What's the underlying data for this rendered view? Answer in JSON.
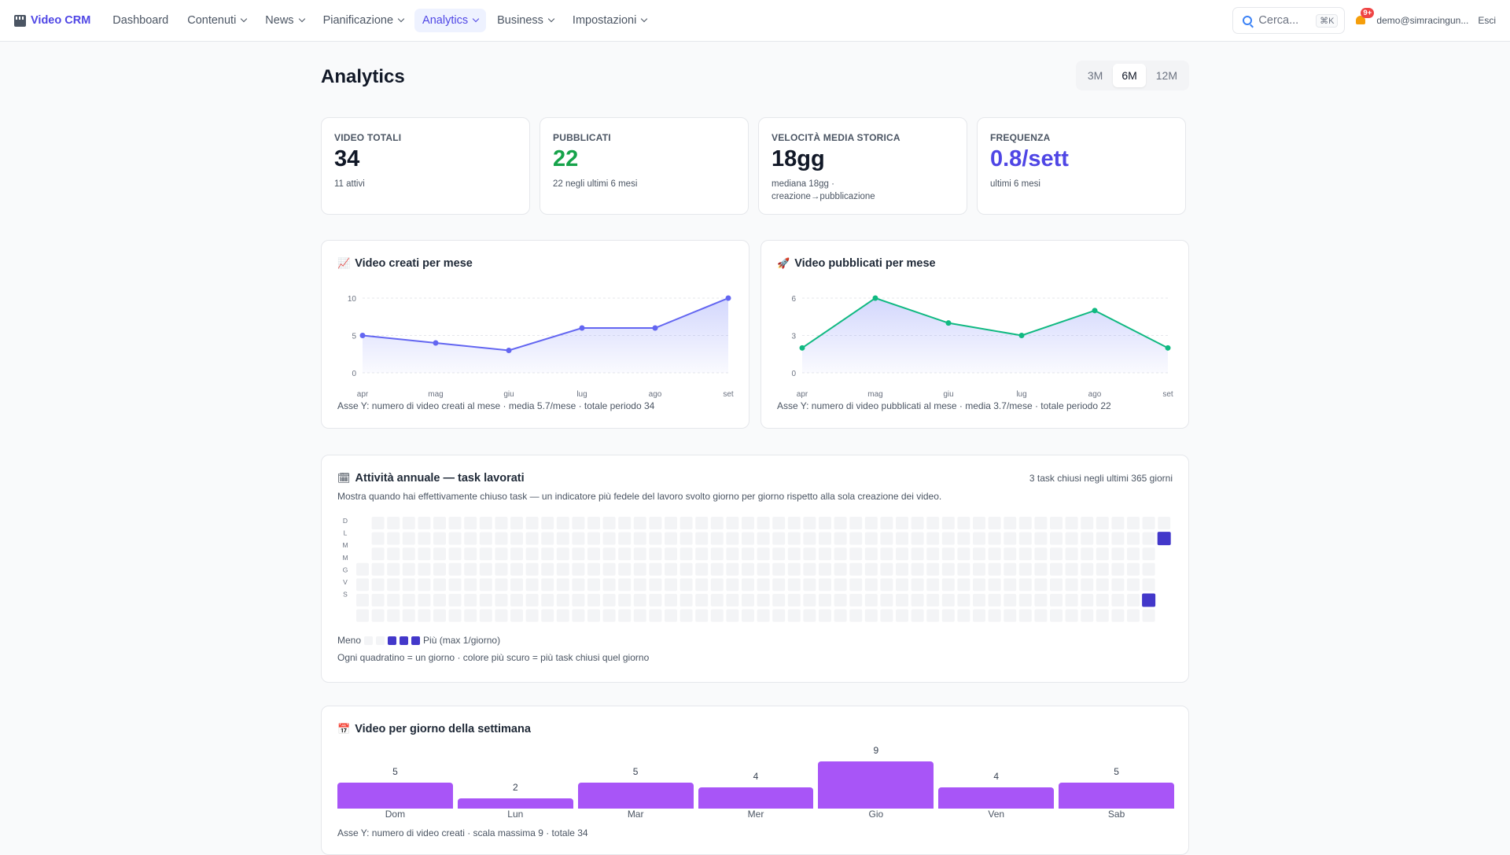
{
  "nav": {
    "brand": "Video CRM",
    "items": [
      {
        "label": "Dashboard",
        "dropdown": false,
        "active": false
      },
      {
        "label": "Contenuti",
        "dropdown": true,
        "active": false
      },
      {
        "label": "News",
        "dropdown": true,
        "active": false
      },
      {
        "label": "Pianificazione",
        "dropdown": true,
        "active": false
      },
      {
        "label": "Analytics",
        "dropdown": true,
        "active": true
      },
      {
        "label": "Business",
        "dropdown": true,
        "active": false
      },
      {
        "label": "Impostazioni",
        "dropdown": true,
        "active": false
      }
    ],
    "search_placeholder": "Cerca...",
    "search_shortcut": "⌘K",
    "notifications_badge": "9+",
    "user_email": "demo@simracingun...",
    "logout": "Esci"
  },
  "page": {
    "title": "Analytics",
    "ranges": [
      {
        "label": "3M",
        "active": false
      },
      {
        "label": "6M",
        "active": true
      },
      {
        "label": "12M",
        "active": false
      }
    ]
  },
  "stats": [
    {
      "label": "VIDEO TOTALI",
      "value": "34",
      "sub": "11 attivi",
      "color": "#111827"
    },
    {
      "label": "PUBBLICATI",
      "value": "22",
      "sub": "22 negli ultimi 6 mesi",
      "color": "#16a34a"
    },
    {
      "label": "VELOCITÀ MEDIA STORICA",
      "value": "18gg",
      "sub": "mediana 18gg · creazione→pubblicazione",
      "color": "#111827"
    },
    {
      "label": "FREQUENZA",
      "value": "0.8/sett",
      "sub": "ultimi 6 mesi",
      "color": "#4f46e5"
    }
  ],
  "created_chart": {
    "icon": "chart-increasing-icon",
    "title": "Video creati per mese",
    "caption": "Asse Y: numero di video creati al mese · media 5.7/mese · totale periodo 34"
  },
  "published_chart": {
    "icon": "rocket-icon",
    "title": "Video pubblicati per mese",
    "caption": "Asse Y: numero di video pubblicati al mese · media 3.7/mese · totale periodo 22"
  },
  "heatmap": {
    "icon": "calendar-icon",
    "title": "Attività annuale — task lavorati",
    "summary": "3 task chiusi negli ultimi 365 giorni",
    "description": "Mostra quando hai effettivamente chiuso task — un indicatore più fedele del lavoro svolto giorno per giorno rispetto alla sola creazione dei video.",
    "day_labels": [
      "D",
      "L",
      "M",
      "M",
      "G",
      "V",
      "S"
    ],
    "legend_less": "Meno",
    "legend_more": "Più (max 1/giorno)",
    "note": "Ogni quadratino = un giorno · colore più scuro = più task chiusi quel giorno",
    "colors": {
      "empty": "#f3f4f6",
      "active": "#4338ca"
    }
  },
  "weekday_chart": {
    "icon": "calendar-icon",
    "title": "Video per giorno della settimana",
    "caption": "Asse Y: numero di video creati · scala massima 9 · totale 34"
  },
  "chart_data": [
    {
      "type": "line",
      "categories": [
        "apr",
        "mag",
        "giu",
        "lug",
        "ago",
        "set"
      ],
      "series": [
        {
          "values": [
            5,
            4,
            3,
            6,
            6,
            10
          ]
        }
      ],
      "ylim": [
        0,
        10
      ],
      "yticks": [
        0,
        5,
        10
      ],
      "color": "#6366f1",
      "grid": true
    },
    {
      "type": "line",
      "categories": [
        "apr",
        "mag",
        "giu",
        "lug",
        "ago",
        "set"
      ],
      "series": [
        {
          "values": [
            2,
            6,
            4,
            3,
            5,
            2
          ]
        }
      ],
      "ylim": [
        0,
        6
      ],
      "yticks": [
        0,
        3,
        6
      ],
      "color": "#10b981",
      "grid": true
    },
    {
      "type": "heatmap",
      "weeks": 53,
      "days_per_week": 7,
      "active_days": [
        {
          "week": 52,
          "day": 1,
          "count": 1
        },
        {
          "week": 51,
          "day": 5,
          "count": 1
        },
        {
          "week": 51,
          "day": 7,
          "count": 1
        }
      ]
    },
    {
      "type": "bar",
      "categories": [
        "Dom",
        "Lun",
        "Mar",
        "Mer",
        "Gio",
        "Ven",
        "Sab"
      ],
      "values": [
        5,
        2,
        5,
        4,
        9,
        4,
        5
      ],
      "ylim": [
        0,
        9
      ],
      "color": "#a855f7"
    }
  ]
}
